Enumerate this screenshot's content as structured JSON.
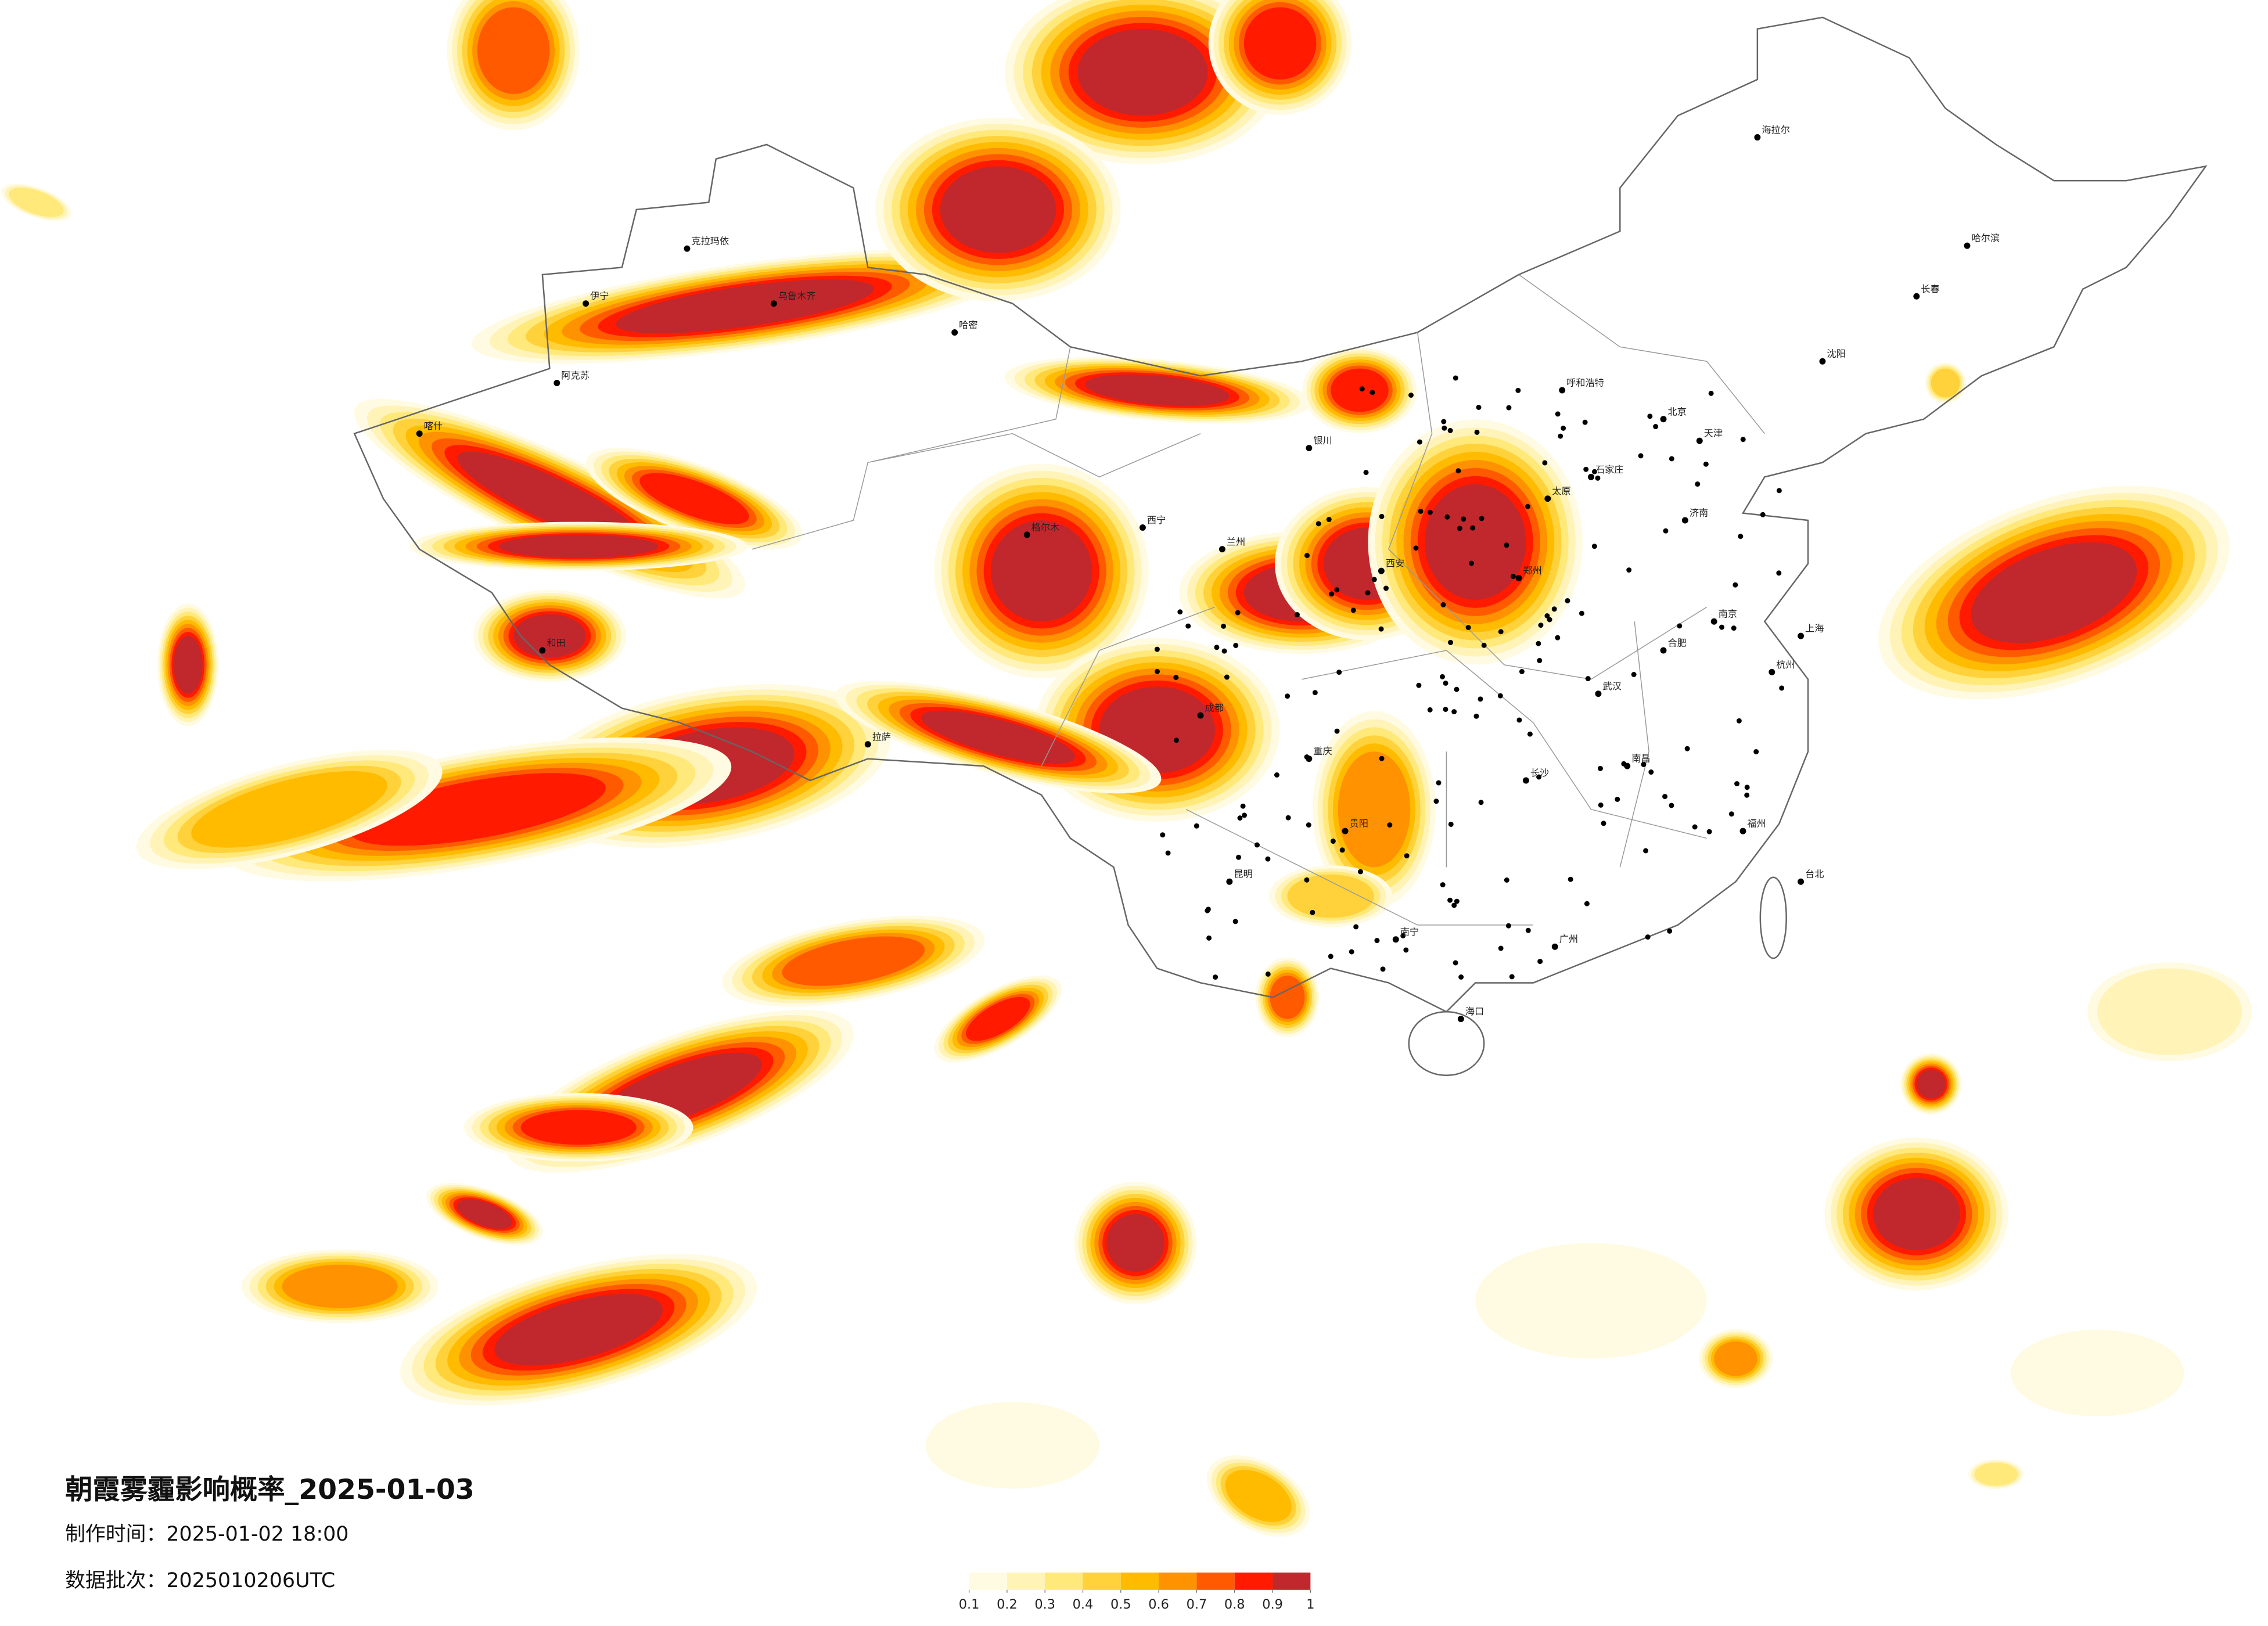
{
  "title": "朝霞雾霾影响概率_2025-01-03",
  "made_time": "制作时间：2025-01-02 18:00",
  "batch": "数据批次：2025010206UTC",
  "legend": {
    "colors": [
      "#fffbe3",
      "#fff3b8",
      "#ffe97a",
      "#ffd23c",
      "#ffbb00",
      "#ff9200",
      "#ff5a00",
      "#ff1a00",
      "#c0282d"
    ],
    "ticks": [
      0.1,
      0.2,
      0.3,
      0.4,
      0.5,
      0.6,
      0.7,
      0.8,
      0.9,
      1
    ]
  },
  "cities": [
    "北京",
    "天津",
    "石家庄",
    "太原",
    "呼和浩特",
    "沈阳",
    "长春",
    "哈尔滨",
    "济南",
    "郑州",
    "西安",
    "兰州",
    "西宁",
    "银川",
    "乌鲁木齐",
    "拉萨",
    "成都",
    "重庆",
    "贵阳",
    "昆明",
    "南宁",
    "广州",
    "海口",
    "长沙",
    "武汉",
    "南昌",
    "福州",
    "杭州",
    "上海",
    "南京",
    "合肥",
    "台北",
    "喀什",
    "伊宁",
    "克拉玛依",
    "哈密",
    "阿克苏",
    "和田",
    "格尔木",
    "海拉尔"
  ]
}
